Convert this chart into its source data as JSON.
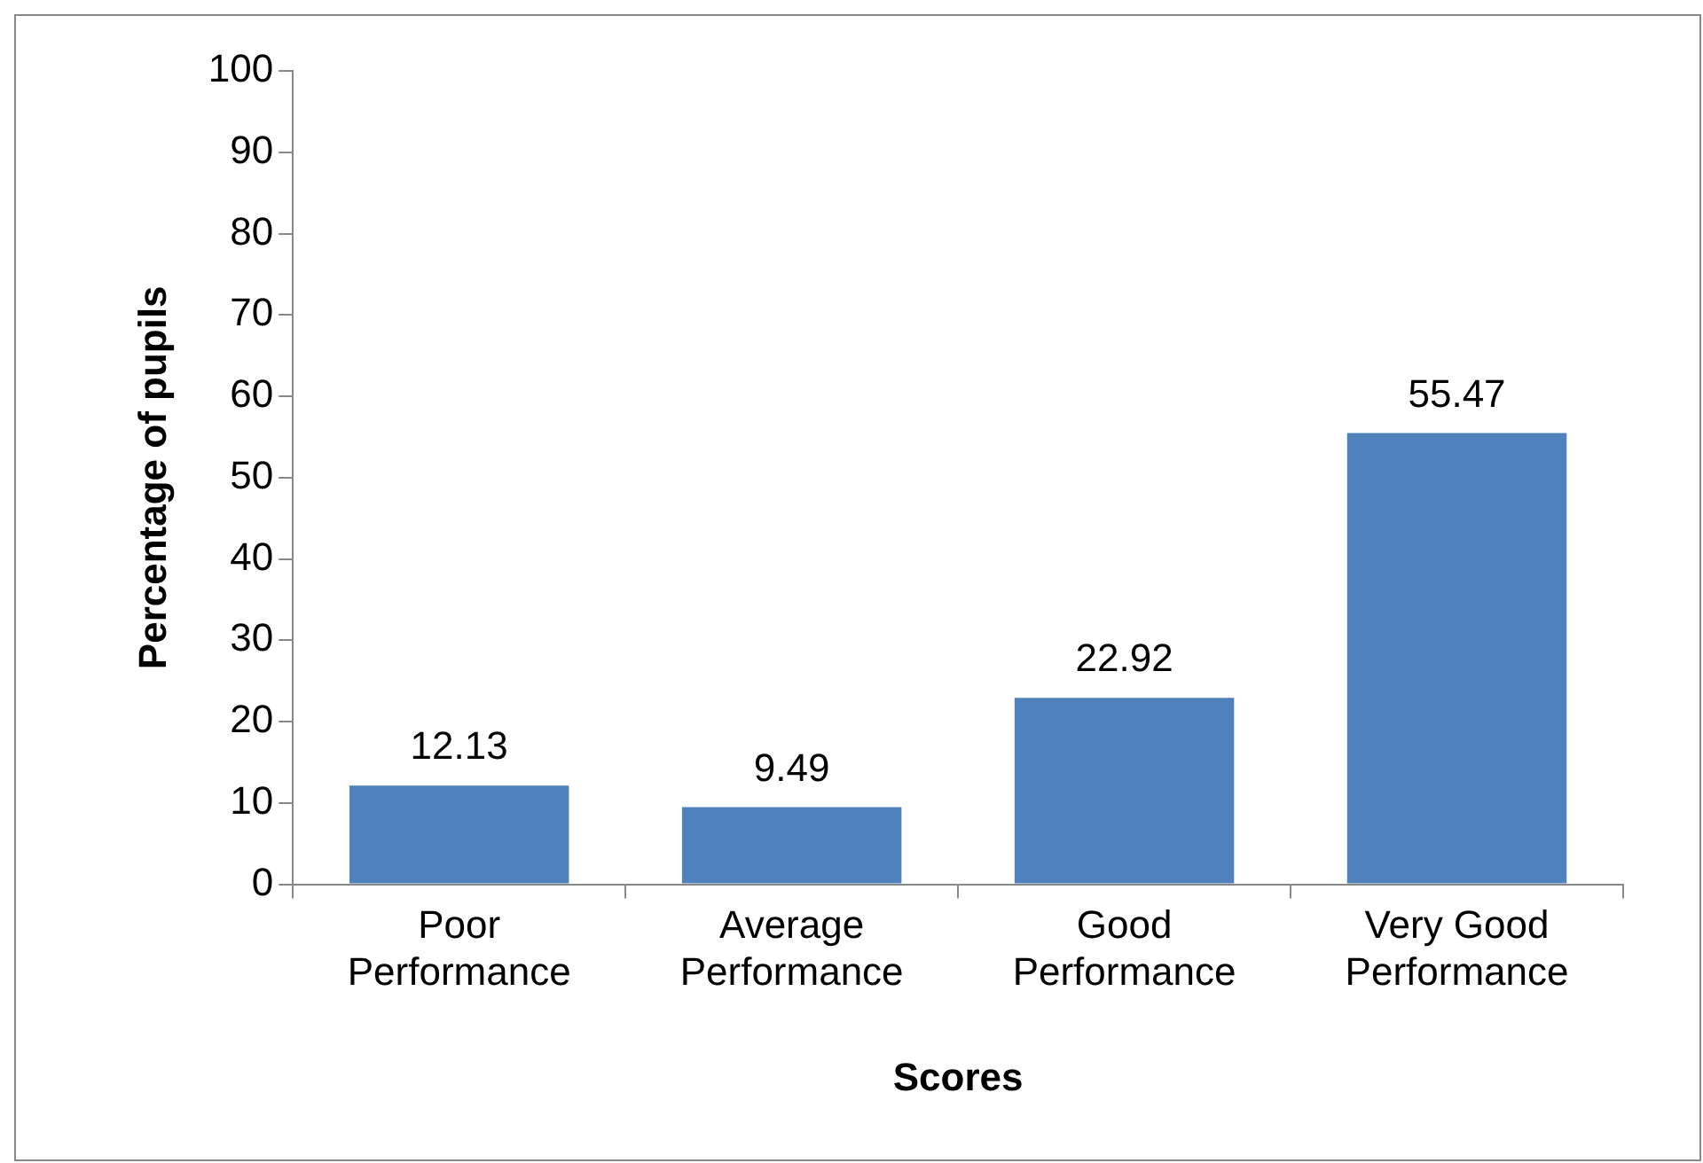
{
  "chart_data": {
    "type": "bar",
    "xlabel": "Scores",
    "ylabel": "Percentage of pupils",
    "categories": [
      "Poor Performance",
      "Average Performance",
      "Good Performance",
      "Very Good Performance"
    ],
    "values": [
      12.13,
      9.49,
      22.92,
      55.47
    ],
    "color": "#4f81bd",
    "ylim": [
      0,
      100
    ],
    "yticks": [
      0,
      10,
      20,
      30,
      40,
      50,
      60,
      70,
      80,
      90,
      100
    ],
    "grid": false,
    "legend": false,
    "data_labels": true
  }
}
